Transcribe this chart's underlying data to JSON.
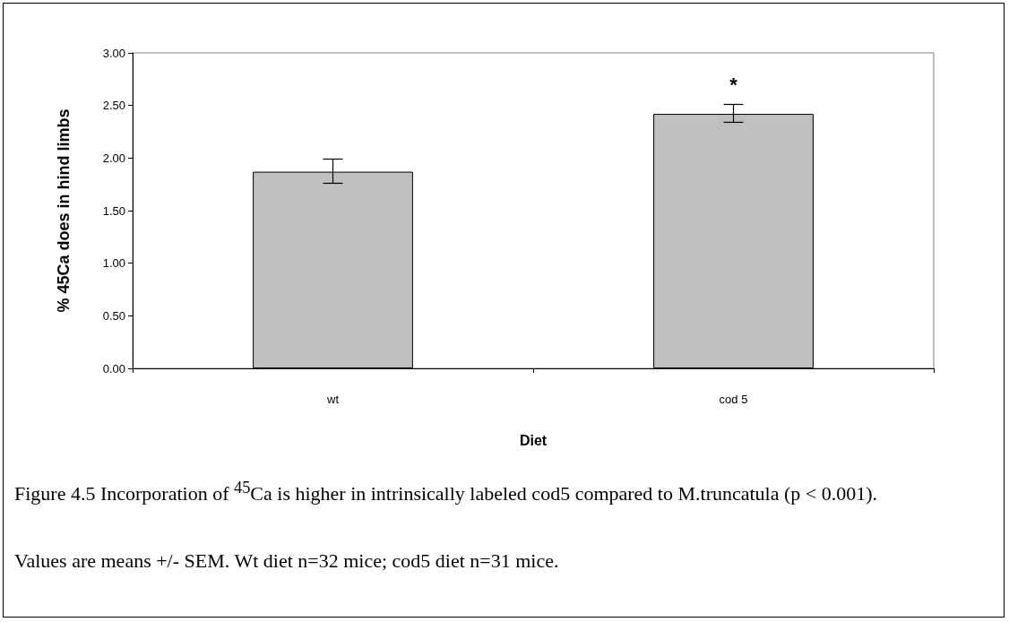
{
  "chart_data": {
    "type": "bar",
    "xlabel": "Diet",
    "ylabel": "% 45Ca does in hind limbs",
    "categories": [
      "wt",
      "cod 5"
    ],
    "values": [
      1.87,
      2.42
    ],
    "errors": [
      [
        1.76,
        1.99
      ],
      [
        2.34,
        2.51
      ]
    ],
    "color": "#c0c0c0",
    "ylim": [
      0,
      3
    ],
    "yticks": [
      {
        "value": 0,
        "label": "0.00"
      },
      {
        "value": 0.5,
        "label": "0.50"
      },
      {
        "value": 1,
        "label": "1.00"
      },
      {
        "value": 1.5,
        "label": "1.50"
      },
      {
        "value": 2,
        "label": "2.00"
      },
      {
        "value": 2.5,
        "label": "2.50"
      },
      {
        "value": 3,
        "label": "3.00"
      }
    ],
    "grid": false,
    "annotations": [
      {
        "text": "*",
        "x": "cod 5",
        "y": 2.51
      },
      "Figure 4.5 Incorporation of $^{45}$Ca is higher in intrinsically labeled cod5 compared to M.truncatula (p < 0.001).",
      "Values are means +/- SEM.  Wt diet n=32 mice; cod5 diet n=31 mice."
    ]
  }
}
